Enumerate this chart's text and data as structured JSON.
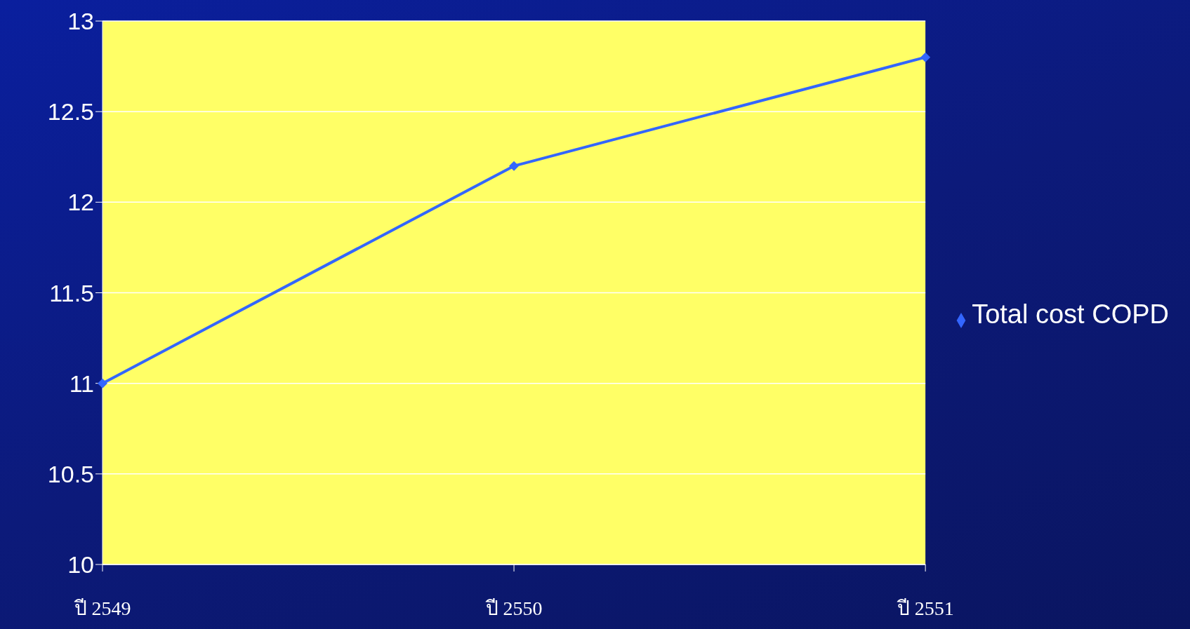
{
  "chart_data": {
    "type": "line",
    "categories": [
      "ปี 2549",
      "ปี 2550",
      "ปี 2551"
    ],
    "series": [
      {
        "name": "Total cost COPD",
        "color": "#3366ff",
        "values": [
          11,
          12.2,
          12.8
        ]
      }
    ],
    "ylim": [
      10,
      13
    ],
    "yticks": [
      10,
      10.5,
      11,
      11.5,
      12,
      12.5,
      13
    ],
    "grid": "y",
    "legend": "right",
    "marker": "diamond",
    "line_style": "solid"
  }
}
